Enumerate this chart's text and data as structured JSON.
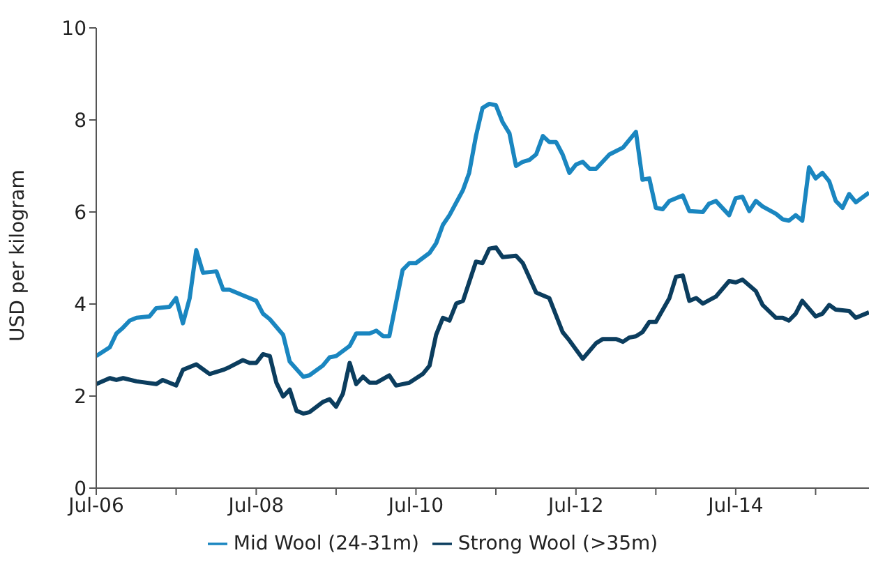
{
  "chart_data": {
    "type": "line",
    "ylabel": "USD per kilogram",
    "ylim": [
      0,
      10
    ],
    "yticks": [
      0,
      2,
      4,
      6,
      8,
      10
    ],
    "xlim": [
      "2006-07",
      "2016-03"
    ],
    "xticks": [
      {
        "value": "2006-07",
        "label": "Jul-06"
      },
      {
        "value": "2007-07",
        "label": null
      },
      {
        "value": "2008-07",
        "label": "Jul-08"
      },
      {
        "value": "2009-07",
        "label": null
      },
      {
        "value": "2010-07",
        "label": "Jul-10"
      },
      {
        "value": "2011-07",
        "label": null
      },
      {
        "value": "2012-07",
        "label": "Jul-12"
      },
      {
        "value": "2013-07",
        "label": null
      },
      {
        "value": "2014-07",
        "label": "Jul-14"
      },
      {
        "value": "2015-07",
        "label": null
      }
    ],
    "legend": "bottom",
    "marker": "none",
    "line_style": "solid",
    "series": [
      {
        "name": "Mid Wool (24-31m)",
        "color": "#1a86c0",
        "x": [
          "2006-07",
          "2006-09",
          "2006-10",
          "2006-11",
          "2006-12",
          "2007-01",
          "2007-03",
          "2007-04",
          "2007-06",
          "2007-07",
          "2007-08",
          "2007-09",
          "2007-10",
          "2007-11",
          "2008-01",
          "2008-02",
          "2008-03",
          "2008-05",
          "2008-07",
          "2008-08",
          "2008-09",
          "2008-11",
          "2008-12",
          "2009-02",
          "2009-03",
          "2009-05",
          "2009-06",
          "2009-07",
          "2009-09",
          "2009-10",
          "2009-12",
          "2010-01",
          "2010-02",
          "2010-03",
          "2010-05",
          "2010-06",
          "2010-07",
          "2010-09",
          "2010-10",
          "2010-11",
          "2010-12",
          "2011-02",
          "2011-03",
          "2011-04",
          "2011-05",
          "2011-06",
          "2011-07",
          "2011-08",
          "2011-09",
          "2011-10",
          "2011-11",
          "2011-12",
          "2012-01",
          "2012-02",
          "2012-03",
          "2012-04",
          "2012-05",
          "2012-06",
          "2012-07",
          "2012-08",
          "2012-09",
          "2012-10",
          "2012-12",
          "2013-02",
          "2013-04",
          "2013-05",
          "2013-06",
          "2013-07",
          "2013-08",
          "2013-09",
          "2013-11",
          "2013-12",
          "2014-02",
          "2014-03",
          "2014-04",
          "2014-06",
          "2014-07",
          "2014-08",
          "2014-09",
          "2014-10",
          "2014-11",
          "2015-01",
          "2015-02",
          "2015-03",
          "2015-04",
          "2015-05",
          "2015-06",
          "2015-07",
          "2015-08",
          "2015-09",
          "2015-10",
          "2015-11",
          "2015-12",
          "2016-01",
          "2016-03"
        ],
        "values": [
          2.87,
          3.06,
          3.36,
          3.49,
          3.64,
          3.7,
          3.73,
          3.91,
          3.94,
          4.13,
          3.58,
          4.13,
          5.17,
          4.68,
          4.71,
          4.31,
          4.31,
          4.19,
          4.07,
          3.79,
          3.67,
          3.33,
          2.75,
          2.42,
          2.45,
          2.66,
          2.84,
          2.87,
          3.09,
          3.36,
          3.36,
          3.42,
          3.3,
          3.3,
          4.74,
          4.89,
          4.89,
          5.11,
          5.32,
          5.72,
          5.93,
          6.48,
          6.85,
          7.65,
          8.26,
          8.35,
          8.32,
          7.95,
          7.71,
          7.0,
          7.09,
          7.13,
          7.25,
          7.65,
          7.52,
          7.52,
          7.25,
          6.85,
          7.03,
          7.09,
          6.94,
          6.94,
          7.25,
          7.4,
          7.74,
          6.7,
          6.73,
          6.09,
          6.06,
          6.24,
          6.36,
          6.02,
          6.0,
          6.18,
          6.24,
          5.93,
          6.3,
          6.33,
          6.02,
          6.24,
          6.12,
          5.96,
          5.84,
          5.81,
          5.93,
          5.81,
          6.97,
          6.73,
          6.85,
          6.67,
          6.24,
          6.09,
          6.39,
          6.21,
          6.42
        ]
      },
      {
        "name": "Strong Wool (>35m)",
        "color": "#0b3d5e",
        "x": [
          "2006-07",
          "2006-09",
          "2006-10",
          "2006-11",
          "2007-01",
          "2007-04",
          "2007-05",
          "2007-07",
          "2007-08",
          "2007-10",
          "2007-12",
          "2008-02",
          "2008-03",
          "2008-05",
          "2008-06",
          "2008-07",
          "2008-08",
          "2008-09",
          "2008-10",
          "2008-11",
          "2008-12",
          "2009-01",
          "2009-02",
          "2009-03",
          "2009-05",
          "2009-06",
          "2009-07",
          "2009-08",
          "2009-09",
          "2009-10",
          "2009-11",
          "2009-12",
          "2010-01",
          "2010-03",
          "2010-04",
          "2010-06",
          "2010-08",
          "2010-09",
          "2010-10",
          "2010-11",
          "2010-12",
          "2011-01",
          "2011-02",
          "2011-04",
          "2011-05",
          "2011-06",
          "2011-07",
          "2011-08",
          "2011-10",
          "2011-11",
          "2012-01",
          "2012-03",
          "2012-05",
          "2012-06",
          "2012-08",
          "2012-10",
          "2012-11",
          "2013-01",
          "2013-02",
          "2013-03",
          "2013-04",
          "2013-05",
          "2013-06",
          "2013-07",
          "2013-09",
          "2013-10",
          "2013-11",
          "2013-12",
          "2014-01",
          "2014-02",
          "2014-04",
          "2014-06",
          "2014-07",
          "2014-08",
          "2014-10",
          "2014-11",
          "2015-01",
          "2015-02",
          "2015-03",
          "2015-04",
          "2015-05",
          "2015-07",
          "2015-08",
          "2015-09",
          "2015-10",
          "2015-12",
          "2016-01",
          "2016-03"
        ],
        "values": [
          2.26,
          2.39,
          2.35,
          2.39,
          2.32,
          2.26,
          2.35,
          2.23,
          2.57,
          2.69,
          2.48,
          2.57,
          2.63,
          2.78,
          2.72,
          2.72,
          2.91,
          2.87,
          2.29,
          1.99,
          2.14,
          1.68,
          1.62,
          1.65,
          1.87,
          1.93,
          1.77,
          2.05,
          2.72,
          2.26,
          2.42,
          2.29,
          2.29,
          2.45,
          2.23,
          2.29,
          2.48,
          2.66,
          3.33,
          3.7,
          3.64,
          4.01,
          4.07,
          4.92,
          4.89,
          5.2,
          5.23,
          5.02,
          5.05,
          4.89,
          4.25,
          4.13,
          3.39,
          3.21,
          2.81,
          3.15,
          3.24,
          3.24,
          3.18,
          3.27,
          3.3,
          3.39,
          3.61,
          3.61,
          4.13,
          4.59,
          4.62,
          4.07,
          4.13,
          4.01,
          4.16,
          4.5,
          4.47,
          4.53,
          4.28,
          3.98,
          3.7,
          3.7,
          3.64,
          3.79,
          4.07,
          3.73,
          3.79,
          3.98,
          3.88,
          3.85,
          3.7,
          3.82
        ]
      }
    ]
  }
}
